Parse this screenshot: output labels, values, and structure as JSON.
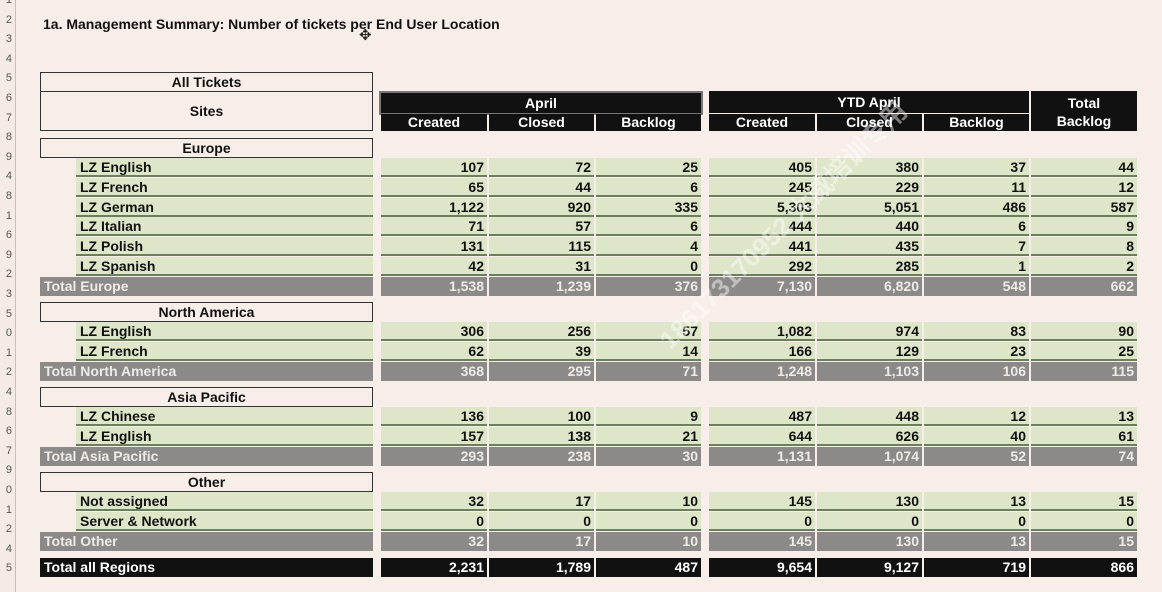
{
  "title": "1a. Management Summary: Number of tickets per End User Location",
  "row_numbers": [
    "1",
    "2",
    "3",
    "4",
    "5",
    "6",
    "7",
    "8",
    "9",
    "4",
    "8",
    "1",
    "6",
    "9",
    "2",
    "3",
    "5",
    "0",
    "1",
    "2",
    "4",
    "8",
    "6",
    "7",
    "9",
    "0",
    "1",
    "2",
    "4",
    "5"
  ],
  "header": {
    "all_tickets": "All Tickets",
    "sites": "Sites",
    "april": "April",
    "ytd_april": "YTD April",
    "total_backlog": [
      "Total",
      "Backlog"
    ],
    "april_cols": [
      "Created",
      "Closed",
      "Backlog"
    ],
    "ytd_cols": [
      "Created",
      "Closed",
      "Backlog"
    ]
  },
  "sections": [
    {
      "name": "Europe",
      "rows": [
        {
          "site": "LZ English",
          "values": [
            "107",
            "72",
            "25",
            "405",
            "380",
            "37",
            "44"
          ]
        },
        {
          "site": "LZ French",
          "values": [
            "65",
            "44",
            "6",
            "245",
            "229",
            "11",
            "12"
          ]
        },
        {
          "site": "LZ German",
          "values": [
            "1,122",
            "920",
            "335",
            "5,303",
            "5,051",
            "486",
            "587"
          ]
        },
        {
          "site": "LZ Italian",
          "values": [
            "71",
            "57",
            "6",
            "444",
            "440",
            "6",
            "9"
          ]
        },
        {
          "site": "LZ Polish",
          "values": [
            "131",
            "115",
            "4",
            "441",
            "435",
            "7",
            "8"
          ]
        },
        {
          "site": "LZ Spanish",
          "values": [
            "42",
            "31",
            "0",
            "292",
            "285",
            "1",
            "2"
          ]
        }
      ],
      "total": {
        "label": "Total Europe",
        "values": [
          "1,538",
          "1,239",
          "376",
          "7,130",
          "6,820",
          "548",
          "662"
        ]
      }
    },
    {
      "name": "North America",
      "rows": [
        {
          "site": "LZ English",
          "values": [
            "306",
            "256",
            "57",
            "1,082",
            "974",
            "83",
            "90"
          ]
        },
        {
          "site": "LZ French",
          "values": [
            "62",
            "39",
            "14",
            "166",
            "129",
            "23",
            "25"
          ]
        }
      ],
      "total": {
        "label": "Total North America",
        "values": [
          "368",
          "295",
          "71",
          "1,248",
          "1,103",
          "106",
          "115"
        ]
      }
    },
    {
      "name": "Asia Pacific",
      "rows": [
        {
          "site": "LZ Chinese",
          "values": [
            "136",
            "100",
            "9",
            "487",
            "448",
            "12",
            "13"
          ]
        },
        {
          "site": "LZ English",
          "values": [
            "157",
            "138",
            "21",
            "644",
            "626",
            "40",
            "61"
          ]
        }
      ],
      "total": {
        "label": "Total Asia Pacific",
        "values": [
          "293",
          "238",
          "30",
          "1,131",
          "1,074",
          "52",
          "74"
        ]
      }
    },
    {
      "name": "Other",
      "rows": [
        {
          "site": "Not assigned",
          "values": [
            "32",
            "17",
            "10",
            "145",
            "130",
            "13",
            "15"
          ]
        },
        {
          "site": "Server & Network",
          "values": [
            "0",
            "0",
            "0",
            "0",
            "0",
            "0",
            "0"
          ]
        }
      ],
      "total": {
        "label": "Total Other",
        "values": [
          "32",
          "17",
          "10",
          "145",
          "130",
          "13",
          "15"
        ]
      }
    }
  ],
  "grand_total": {
    "label": "Total all Regions",
    "values": [
      "2,231",
      "1,789",
      "487",
      "9,654",
      "9,127",
      "719",
      "866"
    ]
  },
  "watermark": "186173170952 大威培训专用",
  "colors": {
    "green_row": "#dde6c8",
    "total_row": "#8c8a88",
    "header_band": "#111111",
    "background": "#f8eee9"
  }
}
